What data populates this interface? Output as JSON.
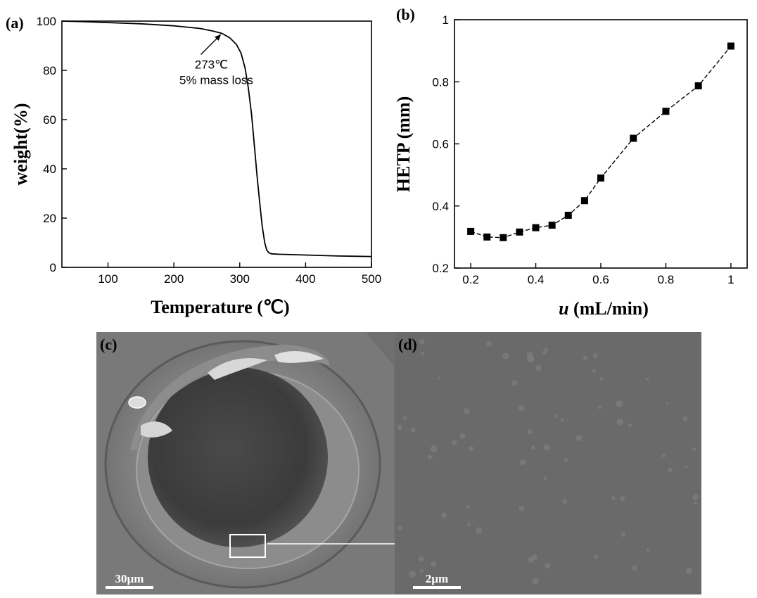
{
  "panels": {
    "a": {
      "label": "(a)"
    },
    "b": {
      "label": "(b)"
    },
    "c": {
      "label": "(c)",
      "scale_bar": "30µm"
    },
    "d": {
      "label": "(d)",
      "scale_bar": "2µm"
    }
  },
  "chart_data": [
    {
      "type": "line",
      "xlabel": "Temperature (℃)",
      "ylabel": "weight(%)",
      "xlim": [
        30,
        500
      ],
      "ylim": [
        0,
        100
      ],
      "xticks": [
        100,
        200,
        300,
        400,
        500
      ],
      "yticks": [
        0,
        20,
        40,
        60,
        80,
        100
      ],
      "grid": false,
      "series": [
        {
          "x": [
            30,
            60,
            100,
            150,
            200,
            240,
            260,
            273,
            285,
            295,
            302,
            308,
            313,
            318,
            322,
            326,
            330,
            334,
            338,
            341,
            344,
            348,
            360,
            400,
            450,
            500
          ],
          "y": [
            100,
            99.8,
            99.4,
            98.9,
            98.1,
            97.0,
            95.9,
            95.0,
            93.2,
            90.5,
            87.0,
            81.0,
            73.0,
            62.0,
            50.0,
            38.0,
            27.0,
            17.0,
            10.0,
            7.0,
            6.0,
            5.5,
            5.3,
            5.0,
            4.6,
            4.4
          ]
        }
      ],
      "annotations": [
        {
          "line1": "273℃",
          "line2": "5% mass loss",
          "points_to": [
            273,
            95
          ]
        }
      ]
    },
    {
      "type": "line",
      "xlabel_var": "u",
      "xlabel_unit": " (mL/min)",
      "ylabel": "HETP (mm)",
      "xlim": [
        0.15,
        1.05
      ],
      "ylim": [
        0.2,
        1.0
      ],
      "xticks": [
        0.2,
        0.4,
        0.6,
        0.8,
        1.0
      ],
      "yticks": [
        0.2,
        0.4,
        0.6,
        0.8,
        1.0
      ],
      "grid": false,
      "series": [
        {
          "marker": "square",
          "x": [
            0.2,
            0.25,
            0.3,
            0.35,
            0.4,
            0.45,
            0.5,
            0.55,
            0.6,
            0.7,
            0.8,
            0.9,
            1.0
          ],
          "y": [
            0.318,
            0.3,
            0.298,
            0.316,
            0.33,
            0.338,
            0.37,
            0.417,
            0.49,
            0.618,
            0.705,
            0.787,
            0.915
          ]
        }
      ]
    }
  ]
}
